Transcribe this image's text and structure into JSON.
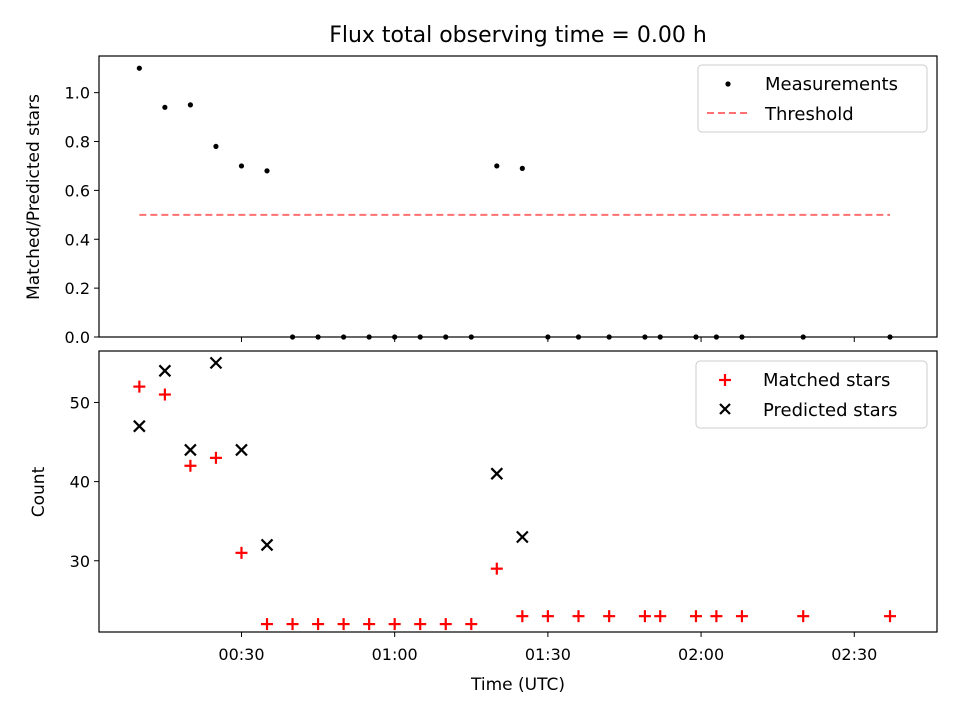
{
  "chart_data": [
    {
      "type": "scatter",
      "title": "Flux total observing time = 0.00 h",
      "xlabel": "",
      "ylabel": "Matched/Predicted stars",
      "ylim": [
        0,
        1.15
      ],
      "yticks": [
        "0.0",
        "0.2",
        "0.4",
        "0.6",
        "0.8",
        "1.0"
      ],
      "legend_position": "top-right",
      "series": [
        {
          "name": "Measurements",
          "marker": "dot",
          "color": "#000000",
          "x": [
            "00:10",
            "00:15",
            "00:20",
            "00:25",
            "00:30",
            "00:35",
            "00:40",
            "00:45",
            "00:50",
            "00:55",
            "01:00",
            "01:05",
            "01:10",
            "01:15",
            "01:20",
            "01:25",
            "01:30",
            "01:36",
            "01:42",
            "01:49",
            "01:52",
            "01:59",
            "02:03",
            "02:08",
            "02:20",
            "02:37"
          ],
          "y": [
            1.1,
            0.94,
            0.95,
            0.78,
            0.7,
            0.68,
            0,
            0,
            0,
            0,
            0,
            0,
            0,
            0,
            0.7,
            0.69,
            0,
            0,
            0,
            0,
            0,
            0,
            0,
            0,
            0,
            0
          ]
        },
        {
          "name": "Threshold",
          "marker": "dashed-line",
          "color": "#ff7070",
          "x": [
            "00:10",
            "02:37"
          ],
          "y": [
            0.5,
            0.5
          ]
        }
      ]
    },
    {
      "type": "scatter",
      "xlabel": "Time (UTC)",
      "ylabel": "Count",
      "ylim": [
        21,
        56.5
      ],
      "yticks": [
        "30",
        "40",
        "50"
      ],
      "xticks": [
        "00:30",
        "01:00",
        "01:30",
        "02:00",
        "02:30"
      ],
      "legend_position": "top-right",
      "series": [
        {
          "name": "Matched stars",
          "marker": "plus",
          "color": "#ff0000",
          "x": [
            "00:10",
            "00:15",
            "00:20",
            "00:25",
            "00:30",
            "00:35",
            "00:40",
            "00:45",
            "00:50",
            "00:55",
            "01:00",
            "01:05",
            "01:10",
            "01:15",
            "01:20",
            "01:25",
            "01:30",
            "01:36",
            "01:42",
            "01:49",
            "01:52",
            "01:59",
            "02:03",
            "02:08",
            "02:20",
            "02:37"
          ],
          "y": [
            52,
            51,
            42,
            43,
            31,
            22,
            22,
            22,
            22,
            22,
            22,
            22,
            22,
            22,
            29,
            23,
            23,
            23,
            23,
            23,
            23,
            23,
            23,
            23,
            23,
            23
          ]
        },
        {
          "name": "Predicted stars",
          "marker": "x",
          "color": "#000000",
          "x": [
            "00:10",
            "00:15",
            "00:20",
            "00:25",
            "00:30",
            "00:35",
            "01:20",
            "01:25"
          ],
          "y": [
            47,
            54,
            44,
            55,
            44,
            32,
            41,
            33
          ]
        }
      ]
    }
  ]
}
